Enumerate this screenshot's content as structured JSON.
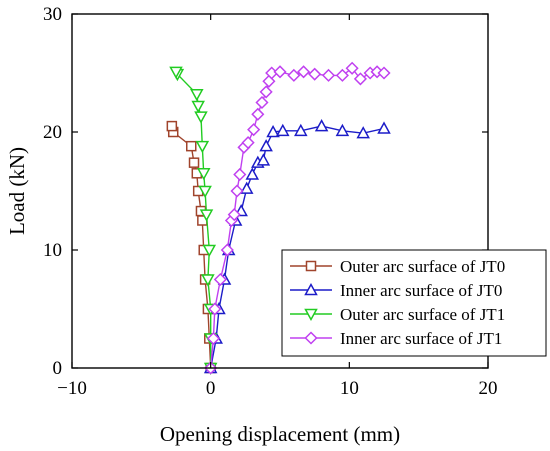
{
  "chart_data": {
    "type": "line",
    "xlabel": "Opening displacement (mm)",
    "ylabel": "Load (kN)",
    "xlim": [
      -10,
      20
    ],
    "ylim": [
      0,
      30
    ],
    "xticks": [
      -10,
      0,
      10,
      20
    ],
    "yticks": [
      0,
      10,
      20,
      30
    ],
    "xtick_labels": [
      "−10",
      "0",
      "10",
      "20"
    ],
    "ytick_labels": [
      "0",
      "10",
      "20",
      "30"
    ],
    "grid": false,
    "legend_position": "bottom-right",
    "series": [
      {
        "name": "Outer arc surface of JT0",
        "color": "#a0442c",
        "marker": "square",
        "points": [
          [
            0,
            0
          ],
          [
            -0.1,
            2.5
          ],
          [
            -0.2,
            5
          ],
          [
            -0.4,
            7.5
          ],
          [
            -0.5,
            10
          ],
          [
            -0.6,
            12.5
          ],
          [
            -0.7,
            13.3
          ],
          [
            -0.9,
            15
          ],
          [
            -1.0,
            16.5
          ],
          [
            -1.2,
            17.4
          ],
          [
            -1.4,
            18.8
          ],
          [
            -2.7,
            20
          ],
          [
            -2.8,
            20.5
          ]
        ]
      },
      {
        "name": "Inner arc surface of JT0",
        "color": "#1c1cc8",
        "marker": "triangle-up",
        "points": [
          [
            0,
            0
          ],
          [
            0.4,
            2.5
          ],
          [
            0.6,
            5
          ],
          [
            1.0,
            7.5
          ],
          [
            1.3,
            10
          ],
          [
            1.8,
            12.5
          ],
          [
            2.2,
            13.3
          ],
          [
            2.6,
            15.2
          ],
          [
            3.0,
            16.4
          ],
          [
            3.4,
            17.4
          ],
          [
            3.8,
            17.6
          ],
          [
            4.0,
            18.8
          ],
          [
            4.5,
            20
          ],
          [
            5.2,
            20.1
          ],
          [
            6.5,
            20.1
          ],
          [
            8.0,
            20.5
          ],
          [
            9.5,
            20.1
          ],
          [
            11.0,
            19.9
          ],
          [
            12.5,
            20.3
          ]
        ]
      },
      {
        "name": "Outer arc surface of JT1",
        "color": "#22cc22",
        "marker": "triangle-down",
        "points": [
          [
            0,
            0
          ],
          [
            0,
            2.5
          ],
          [
            0,
            5
          ],
          [
            -0.2,
            7.5
          ],
          [
            -0.1,
            10
          ],
          [
            -0.3,
            13
          ],
          [
            -0.4,
            15
          ],
          [
            -0.5,
            16.5
          ],
          [
            -0.6,
            18.8
          ],
          [
            -0.7,
            21.3
          ],
          [
            -0.9,
            22.2
          ],
          [
            -1.0,
            23.2
          ],
          [
            -2.4,
            24.9
          ],
          [
            -2.5,
            25.1
          ]
        ]
      },
      {
        "name": "Inner arc surface of JT1",
        "color": "#c040f0",
        "marker": "diamond",
        "points": [
          [
            0,
            0
          ],
          [
            0.2,
            2.5
          ],
          [
            0.3,
            5
          ],
          [
            0.7,
            7.5
          ],
          [
            1.2,
            10
          ],
          [
            1.5,
            12.5
          ],
          [
            1.7,
            13
          ],
          [
            1.9,
            15
          ],
          [
            2.1,
            16.4
          ],
          [
            2.4,
            18.7
          ],
          [
            2.7,
            19.1
          ],
          [
            3.1,
            20.2
          ],
          [
            3.4,
            21.5
          ],
          [
            3.7,
            22.5
          ],
          [
            4.0,
            23.4
          ],
          [
            4.2,
            24.3
          ],
          [
            4.4,
            25
          ],
          [
            5.0,
            25.1
          ],
          [
            6.0,
            24.8
          ],
          [
            6.7,
            25.1
          ],
          [
            7.5,
            24.9
          ],
          [
            8.5,
            24.8
          ],
          [
            9.5,
            24.8
          ],
          [
            10.2,
            25.4
          ],
          [
            10.8,
            24.5
          ],
          [
            11.5,
            25
          ],
          [
            12.0,
            25.1
          ],
          [
            12.5,
            25
          ]
        ]
      }
    ]
  }
}
